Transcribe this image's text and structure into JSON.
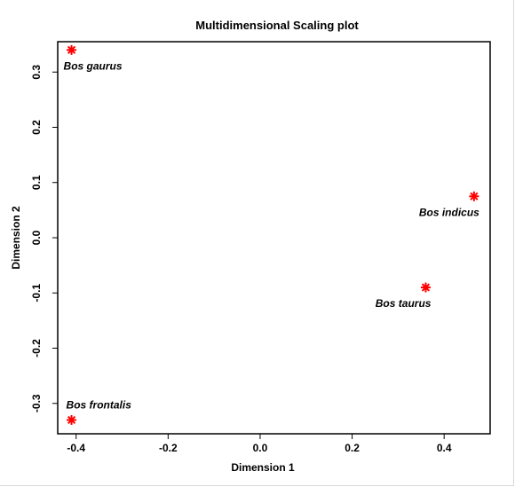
{
  "chart_data": {
    "type": "scatter",
    "title": "Multidimensional Scaling plot",
    "xlabel": "Dimension 1",
    "ylabel": "Dimension 2",
    "xlim": [
      -0.44,
      0.5
    ],
    "ylim": [
      -0.355,
      0.355
    ],
    "xticks": [
      "-0.4",
      "-0.2",
      "0.0",
      "0.2",
      "0.4"
    ],
    "yticks": [
      "-0.3",
      "-0.2",
      "-0.1",
      "0.0",
      "0.1",
      "0.2",
      "0.3"
    ],
    "grid": false,
    "marker_color": "#ff0000",
    "marker": "asterisk",
    "points": [
      {
        "label": "Bos gaurus",
        "x": -0.41,
        "y": 0.34,
        "label_pos": "below"
      },
      {
        "label": "Bos indicus",
        "x": 0.465,
        "y": 0.075,
        "label_pos": "below-left"
      },
      {
        "label": "Bos taurus",
        "x": 0.36,
        "y": -0.09,
        "label_pos": "below-left"
      },
      {
        "label": "Bos frontalis",
        "x": -0.41,
        "y": -0.33,
        "label_pos": "above"
      }
    ]
  }
}
